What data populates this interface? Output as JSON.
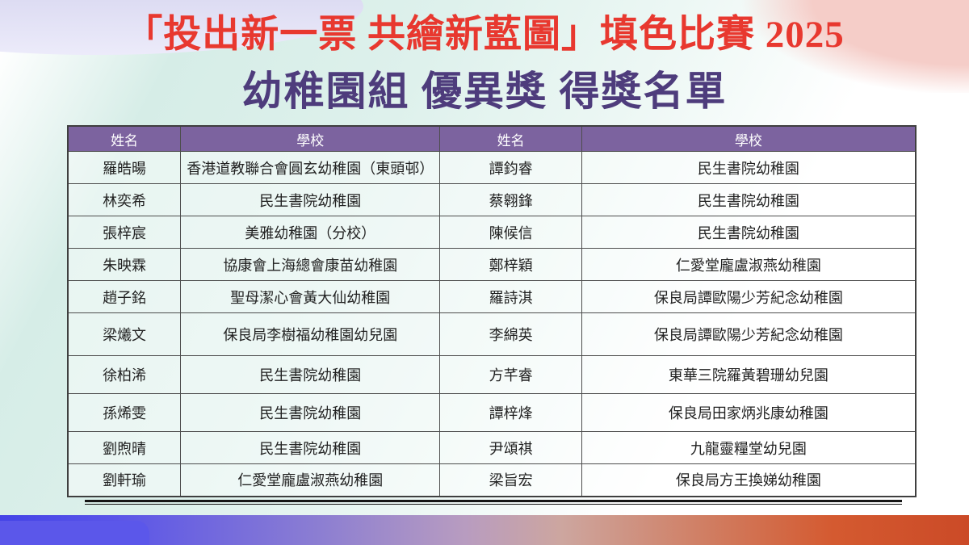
{
  "page": {
    "title": "「投出新一票 共繪新藍圖」填色比賽 2025",
    "subtitle": "幼稚園組 優異獎 得獎名單"
  },
  "table": {
    "headers": [
      "姓名",
      "學校",
      "姓名",
      "學校"
    ],
    "rows": [
      {
        "name1": "羅皓暘",
        "school1": "香港道教聯合會圓玄幼稚園（東頭邨）",
        "name2": "譚鈞睿",
        "school2": "民生書院幼稚園"
      },
      {
        "name1": "林奕希",
        "school1": "民生書院幼稚園",
        "name2": "蔡翱鋒",
        "school2": "民生書院幼稚園"
      },
      {
        "name1": "張梓宸",
        "school1": "美雅幼稚園（分校）",
        "name2": "陳候信",
        "school2": "民生書院幼稚園"
      },
      {
        "name1": "朱映霖",
        "school1": "協康會上海總會康苗幼稚園",
        "name2": "鄭梓穎",
        "school2": "仁愛堂龐盧淑燕幼稚園"
      },
      {
        "name1": "趙子銘",
        "school1": "聖母潔心會黃大仙幼稚園",
        "name2": "羅詩淇",
        "school2": "保良局譚歐陽少芳紀念幼稚園"
      },
      {
        "name1": "梁爔文",
        "school1": "保良局李樹福幼稚園幼兒園",
        "name2": "李綿英",
        "school2": "保良局譚歐陽少芳紀念幼稚園"
      },
      {
        "name1": "徐柏浠",
        "school1": "民生書院幼稚園",
        "name2": "方芊睿",
        "school2": "東華三院羅黃碧珊幼兒園"
      },
      {
        "name1": "孫烯雯",
        "school1": "民生書院幼稚園",
        "name2": "譚梓烽",
        "school2": "保良局田家炳兆康幼稚園"
      },
      {
        "name1": "劉煦晴",
        "school1": "民生書院幼稚園",
        "name2": "尹頌祺",
        "school2": "九龍靈糧堂幼兒園"
      },
      {
        "name1": "劉軒瑜",
        "school1": "仁愛堂龐盧淑燕幼稚園",
        "name2": "梁旨宏",
        "school2": "保良局方王換娣幼稚園"
      }
    ]
  },
  "colors": {
    "title_red": "#E8382F",
    "subtitle_purple": "#4E3C7C",
    "table_header_purple": "#7C639F",
    "table_header_text": "#FFFFFF",
    "cell_text": "#222222",
    "background_mint": "#D6EDE7",
    "corner_dome_lavender": "#DCDBF2",
    "corner_pink": "#F5CDC8",
    "bottom_bar_left_blue": "#4443E7",
    "bottom_bar_right_red": "#CB4A27",
    "bottom_left_tab_blue": "#5B57EA"
  }
}
